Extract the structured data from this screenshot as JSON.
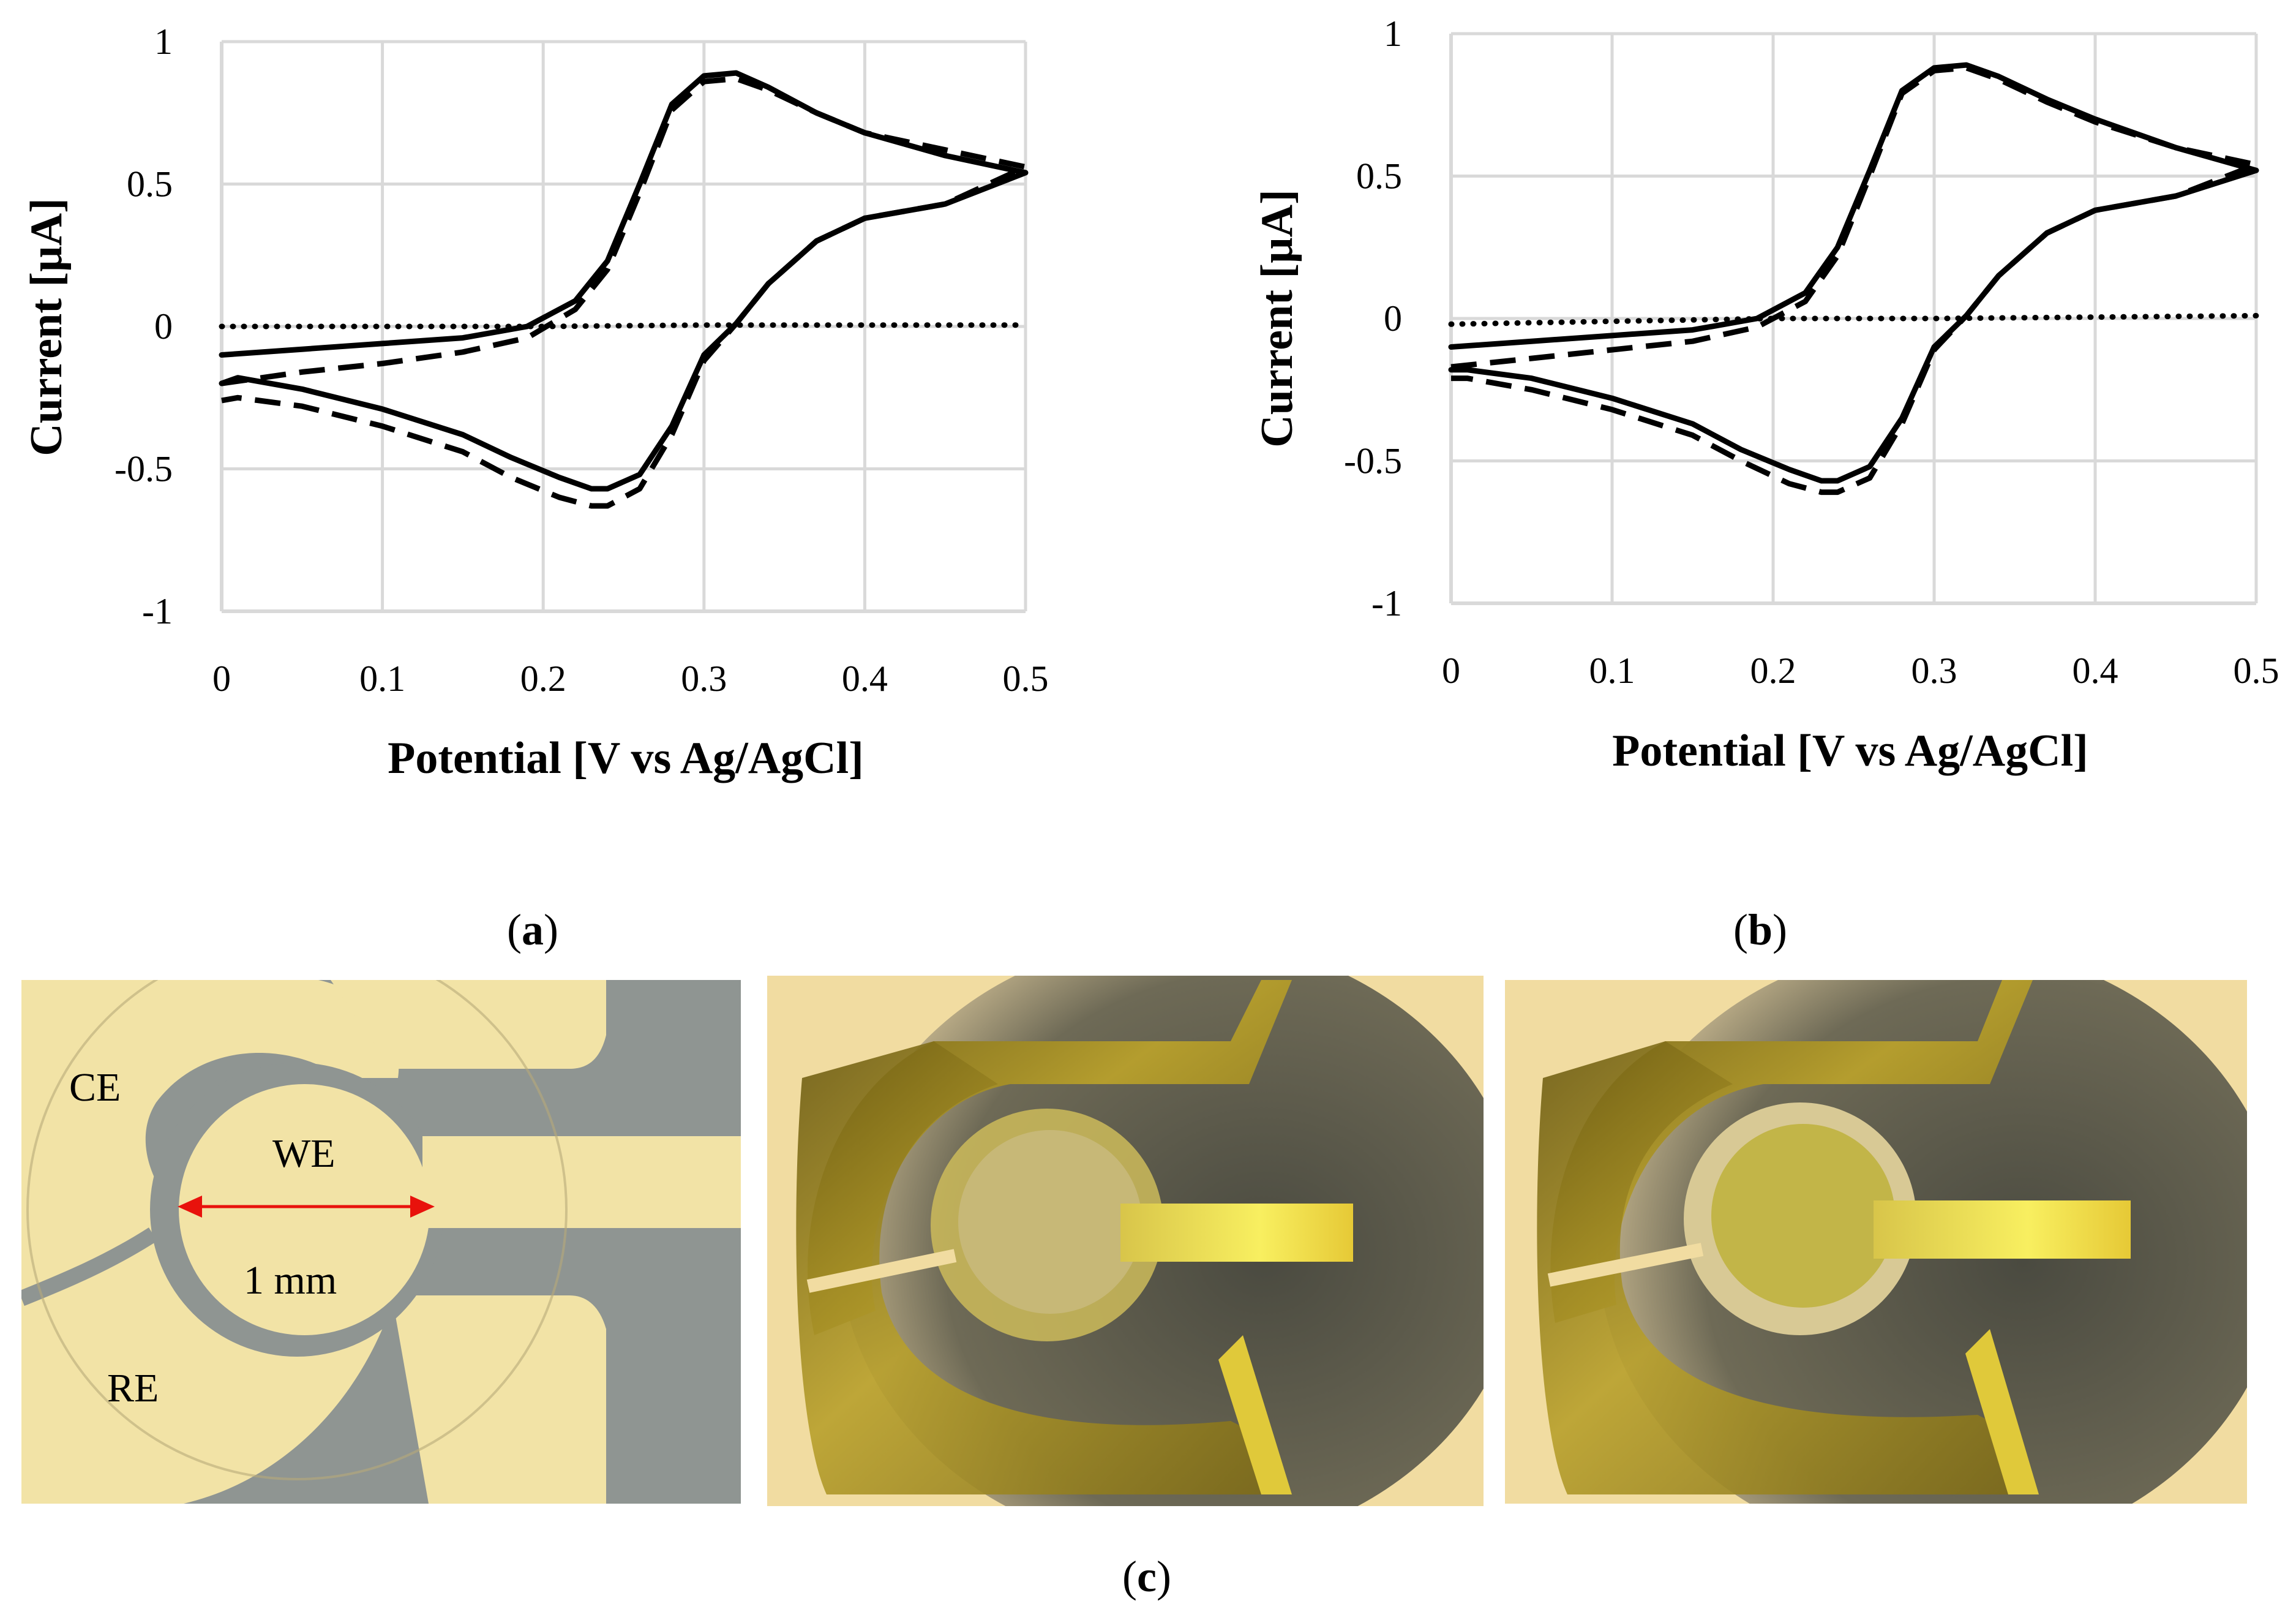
{
  "chart_data": [
    {
      "id": "a",
      "type": "line",
      "xlabel": "Potential [V vs Ag/AgCl]",
      "ylabel": "Current [µA]",
      "xlim": [
        0,
        0.5
      ],
      "ylim": [
        -1,
        1
      ],
      "xticks": [
        0,
        0.1,
        0.2,
        0.3,
        0.4,
        0.5
      ],
      "xtick_labels": [
        "0",
        "0.1",
        "0.2",
        "0.3",
        "0.4",
        "0.5"
      ],
      "yticks": [
        -1,
        -0.5,
        0,
        0.5,
        1
      ],
      "ytick_labels": [
        "-1",
        "-0.5",
        "0",
        "0.5",
        "1"
      ],
      "grid": true,
      "caption": "a",
      "series": [
        {
          "name": "solid",
          "style": "solid",
          "x": [
            0,
            0.05,
            0.1,
            0.15,
            0.19,
            0.22,
            0.24,
            0.26,
            0.28,
            0.3,
            0.32,
            0.34,
            0.37,
            0.4,
            0.45,
            0.5,
            0.45,
            0.4,
            0.37,
            0.34,
            0.32,
            0.3,
            0.28,
            0.26,
            0.24,
            0.23,
            0.21,
            0.18,
            0.15,
            0.1,
            0.05,
            0.01,
            0
          ],
          "y": [
            -0.1,
            -0.08,
            -0.06,
            -0.04,
            0,
            0.09,
            0.23,
            0.5,
            0.78,
            0.88,
            0.89,
            0.84,
            0.75,
            0.68,
            0.6,
            0.54,
            0.43,
            0.38,
            0.3,
            0.15,
            0.01,
            -0.1,
            -0.35,
            -0.52,
            -0.57,
            -0.57,
            -0.53,
            -0.46,
            -0.38,
            -0.29,
            -0.22,
            -0.18,
            -0.2
          ]
        },
        {
          "name": "dashed",
          "style": "dashed",
          "x": [
            0,
            0.05,
            0.1,
            0.15,
            0.19,
            0.22,
            0.24,
            0.26,
            0.28,
            0.3,
            0.32,
            0.34,
            0.37,
            0.4,
            0.45,
            0.5,
            0.45,
            0.4,
            0.37,
            0.34,
            0.32,
            0.3,
            0.28,
            0.26,
            0.24,
            0.23,
            0.21,
            0.18,
            0.15,
            0.1,
            0.05,
            0.01,
            0
          ],
          "y": [
            -0.2,
            -0.16,
            -0.13,
            -0.09,
            -0.04,
            0.06,
            0.2,
            0.47,
            0.76,
            0.86,
            0.87,
            0.83,
            0.75,
            0.68,
            0.62,
            0.56,
            0.43,
            0.38,
            0.3,
            0.15,
            0.01,
            -0.12,
            -0.38,
            -0.57,
            -0.63,
            -0.63,
            -0.6,
            -0.53,
            -0.44,
            -0.35,
            -0.28,
            -0.25,
            -0.26
          ]
        },
        {
          "name": "dotted",
          "style": "dotted",
          "x": [
            0,
            0.1,
            0.2,
            0.3,
            0.4,
            0.5
          ],
          "y": [
            0,
            0,
            0,
            0.005,
            0.005,
            0.005
          ]
        }
      ]
    },
    {
      "id": "b",
      "type": "line",
      "xlabel": "Potential [V vs Ag/AgCl]",
      "ylabel": "Current [µA]",
      "xlim": [
        0,
        0.5
      ],
      "ylim": [
        -1,
        1
      ],
      "xticks": [
        0,
        0.1,
        0.2,
        0.3,
        0.4,
        0.5
      ],
      "xtick_labels": [
        "0",
        "0.1",
        "0.2",
        "0.3",
        "0.4",
        "0.5"
      ],
      "yticks": [
        -1,
        -0.5,
        0,
        0.5,
        1
      ],
      "ytick_labels": [
        "-1",
        "-0.5",
        "0",
        "0.5",
        "1"
      ],
      "grid": true,
      "caption": "b",
      "series": [
        {
          "name": "solid",
          "style": "solid",
          "x": [
            0,
            0.05,
            0.1,
            0.15,
            0.19,
            0.22,
            0.24,
            0.26,
            0.28,
            0.3,
            0.32,
            0.34,
            0.37,
            0.4,
            0.45,
            0.5,
            0.45,
            0.4,
            0.37,
            0.34,
            0.32,
            0.3,
            0.28,
            0.26,
            0.24,
            0.23,
            0.21,
            0.18,
            0.15,
            0.1,
            0.05,
            0.01,
            0
          ],
          "y": [
            -0.1,
            -0.08,
            -0.06,
            -0.04,
            0,
            0.09,
            0.25,
            0.52,
            0.8,
            0.88,
            0.89,
            0.85,
            0.77,
            0.7,
            0.6,
            0.52,
            0.43,
            0.38,
            0.3,
            0.15,
            0.01,
            -0.1,
            -0.35,
            -0.52,
            -0.57,
            -0.57,
            -0.53,
            -0.46,
            -0.37,
            -0.28,
            -0.21,
            -0.18,
            -0.18
          ]
        },
        {
          "name": "dashed",
          "style": "dashed",
          "x": [
            0,
            0.05,
            0.1,
            0.15,
            0.19,
            0.22,
            0.24,
            0.26,
            0.28,
            0.3,
            0.32,
            0.34,
            0.37,
            0.4,
            0.45,
            0.5,
            0.45,
            0.4,
            0.37,
            0.34,
            0.32,
            0.3,
            0.28,
            0.26,
            0.24,
            0.23,
            0.21,
            0.18,
            0.15,
            0.1,
            0.05,
            0.01,
            0
          ],
          "y": [
            -0.17,
            -0.14,
            -0.11,
            -0.08,
            -0.03,
            0.06,
            0.22,
            0.5,
            0.79,
            0.87,
            0.88,
            0.84,
            0.76,
            0.69,
            0.6,
            0.54,
            0.43,
            0.38,
            0.3,
            0.15,
            0.01,
            -0.11,
            -0.37,
            -0.56,
            -0.61,
            -0.61,
            -0.58,
            -0.5,
            -0.41,
            -0.32,
            -0.25,
            -0.21,
            -0.21
          ]
        },
        {
          "name": "dotted",
          "style": "dotted",
          "x": [
            0,
            0.1,
            0.2,
            0.3,
            0.4,
            0.5
          ],
          "y": [
            -0.02,
            -0.01,
            0,
            0,
            0.005,
            0.01
          ]
        }
      ]
    }
  ],
  "photos": {
    "left": {
      "labels": {
        "ce": "CE",
        "we": "WE",
        "re": "RE",
        "scale": "1 mm"
      }
    },
    "caption": "c"
  },
  "colors": {
    "ink": "#000000",
    "grid": "#d9d9d9",
    "arrow": "#e8120c",
    "gold_light": "#f2e3a6",
    "gold_bright": "#e7cf52",
    "substrate_gray": "#8f9592",
    "photo_bg": "#f1dca1"
  }
}
